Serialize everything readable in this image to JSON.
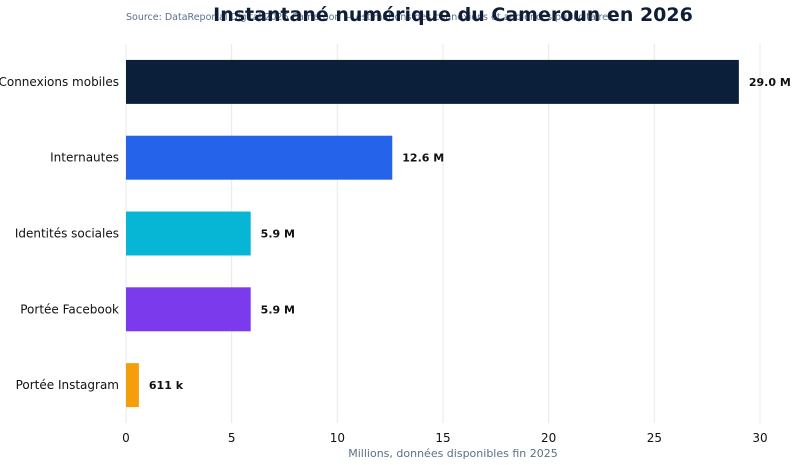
{
  "chart_data": {
    "type": "bar",
    "orientation": "horizontal",
    "title": "Instantané numérique du Cameroun en 2026",
    "subtitle": "Source: DataReportal Digital 2026 Cameroon — estimations des connexions et audiences publicitaires",
    "xlabel": "Millions, données disponibles fin 2025",
    "ylabel": "",
    "xlim": [
      0,
      30
    ],
    "xticks": [
      0,
      5,
      10,
      15,
      20,
      25,
      30
    ],
    "grid": true,
    "categories": [
      "Connexions mobiles",
      "Internautes",
      "Identités sociales",
      "Portée Facebook",
      "Portée Instagram"
    ],
    "values": [
      29.0,
      12.6,
      5.9,
      5.9,
      0.611
    ],
    "data_labels": [
      "29.0 M",
      "12.6 M",
      "5.9 M",
      "5.9 M",
      "611 k"
    ],
    "colors": [
      "#0b1f3a",
      "#2563eb",
      "#06b6d4",
      "#7c3aed",
      "#f59e0b"
    ]
  }
}
